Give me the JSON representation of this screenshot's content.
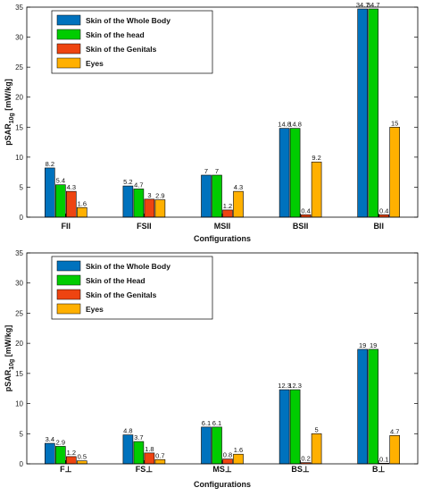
{
  "chart_data": [
    {
      "type": "bar",
      "categories": [
        "FII",
        "FSII",
        "MSII",
        "BSII",
        "BII"
      ],
      "series": [
        {
          "name": "Skin of the Whole Body",
          "color": "#0072BD",
          "values": [
            8.2,
            5.2,
            7,
            14.8,
            34.7
          ]
        },
        {
          "name": "Skin of the head",
          "color": "#00CC00",
          "values": [
            5.4,
            4.7,
            7,
            14.8,
            34.7
          ]
        },
        {
          "name": "Skin of the Genitals",
          "color": "#EE4411",
          "values": [
            4.3,
            3,
            1.2,
            0.4,
            0.4
          ]
        },
        {
          "name": "Eyes",
          "color": "#FFB000",
          "values": [
            1.6,
            2.9,
            4.3,
            9.2,
            15
          ]
        }
      ],
      "data_labels": [
        [
          "8.2",
          "5.2",
          "7",
          "14.8",
          "34.7"
        ],
        [
          "5.4",
          "4.7",
          "7",
          "14.8",
          "34.7"
        ],
        [
          "4.3",
          "3",
          "1.2",
          "0.4",
          "0.4"
        ],
        [
          "1.6",
          "2.9",
          "4.3",
          "9.2",
          "15"
        ]
      ],
      "xlabel": "Configurations",
      "ylabel_main": "pSAR",
      "ylabel_sub": "10g",
      "ylabel_unit": " [mW/kg]",
      "ylim": [
        0,
        35
      ],
      "yticks": [
        "0",
        "5",
        "10",
        "15",
        "20",
        "25",
        "30",
        "35"
      ],
      "grid": false,
      "legend_position": "top-left"
    },
    {
      "type": "bar",
      "categories": [
        "F⊥",
        "FS⊥",
        "MS⊥",
        "BS⊥",
        "B⊥"
      ],
      "series": [
        {
          "name": "Skin of the Whole Body",
          "color": "#0072BD",
          "values": [
            3.4,
            4.8,
            6.1,
            12.3,
            19
          ]
        },
        {
          "name": "Skin of the Head",
          "color": "#00CC00",
          "values": [
            2.9,
            3.7,
            6.1,
            12.3,
            19
          ]
        },
        {
          "name": "Skin of the Genitals",
          "color": "#EE4411",
          "values": [
            1.2,
            1.8,
            0.8,
            0.2,
            0.1
          ]
        },
        {
          "name": "Eyes",
          "color": "#FFB000",
          "values": [
            0.5,
            0.7,
            1.6,
            5,
            4.7
          ]
        }
      ],
      "data_labels": [
        [
          "3.4",
          "4.8",
          "6.1",
          "12.3",
          "19"
        ],
        [
          "2.9",
          "3.7",
          "6.1",
          "12.3",
          "19"
        ],
        [
          "1.2",
          "1.8",
          "0.8",
          "0.2",
          "0.1"
        ],
        [
          "0.5",
          "0.7",
          "1.6",
          "5",
          "4.7"
        ]
      ],
      "xlabel": "Configurations",
      "ylabel_main": "pSAR",
      "ylabel_sub": "10g",
      "ylabel_unit": " [mW/kg]",
      "ylim": [
        0,
        35
      ],
      "yticks": [
        "0",
        "5",
        "10",
        "15",
        "20",
        "25",
        "30",
        "35"
      ],
      "grid": false,
      "legend_position": "top-left"
    }
  ]
}
